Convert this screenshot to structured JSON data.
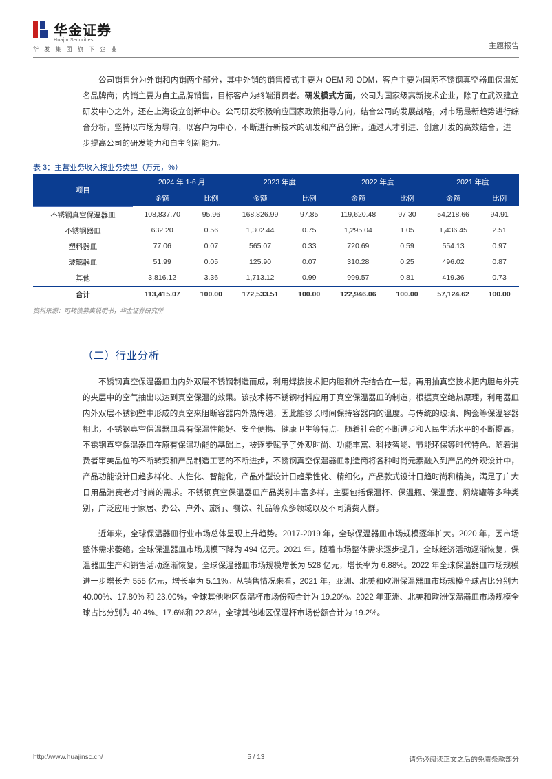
{
  "header": {
    "company_name": "华金证券",
    "company_en": "Huajin Securities",
    "tagline": "华 发 集 团 旗 下 企 业",
    "report_type": "主题报告",
    "logo_colors": {
      "red": "#c8201e",
      "blue": "#1e3a8a"
    }
  },
  "intro_para": {
    "text_before_bold": "公司销售分为外销和内销两个部分，其中外销的销售模式主要为 OEM 和 ODM，客户主要为国际不锈钢真空器皿保温知名品牌商；内销主要为自主品牌销售，目标客户为终端消费者。",
    "bold_text": "研发模式方面，",
    "text_after_bold": "公司为国家级高新技术企业，除了在武汉建立研发中心之外，还在上海设立创新中心。公司研发积极响应国家政策指导方向，结合公司的发展战略，对市场最新趋势进行综合分析，坚持以市场为导向，以客户为中心，不断进行新技术的研发和产品创新，通过人才引进、创意开发的高效结合，进一步提高公司的研发能力和自主创新能力。"
  },
  "table": {
    "caption": "表 3：主营业务收入按业务类型（万元，%）",
    "header_top": {
      "col0": "项目",
      "p1": "2024 年 1-6 月",
      "p2": "2023 年度",
      "p3": "2022 年度",
      "p4": "2021 年度"
    },
    "header_sub": {
      "amt": "金额",
      "pct": "比例"
    },
    "rows": [
      {
        "label": "不锈钢真空保温器皿",
        "v": [
          "108,837.70",
          "95.96",
          "168,826.99",
          "97.85",
          "119,620.48",
          "97.30",
          "54,218.66",
          "94.91"
        ]
      },
      {
        "label": "不锈钢器皿",
        "v": [
          "632.20",
          "0.56",
          "1,302.44",
          "0.75",
          "1,295.04",
          "1.05",
          "1,436.45",
          "2.51"
        ]
      },
      {
        "label": "塑料器皿",
        "v": [
          "77.06",
          "0.07",
          "565.07",
          "0.33",
          "720.69",
          "0.59",
          "554.13",
          "0.97"
        ]
      },
      {
        "label": "玻璃器皿",
        "v": [
          "51.99",
          "0.05",
          "125.90",
          "0.07",
          "310.28",
          "0.25",
          "496.02",
          "0.87"
        ]
      },
      {
        "label": "其他",
        "v": [
          "3,816.12",
          "3.36",
          "1,713.12",
          "0.99",
          "999.57",
          "0.81",
          "419.36",
          "0.73"
        ]
      }
    ],
    "total": {
      "label": "合计",
      "v": [
        "113,415.07",
        "100.00",
        "172,533.51",
        "100.00",
        "122,946.06",
        "100.00",
        "57,124.62",
        "100.00"
      ]
    },
    "source": "资料来源：可转债募集说明书，华金证券研究所",
    "colors": {
      "header_bg": "#0b3d91",
      "header_fg": "#ffffff",
      "caption_color": "#0a3a8a",
      "rule_color": "#0b3d91"
    }
  },
  "section2": {
    "title": "（二）行业分析",
    "para1": "不锈钢真空保温器皿由内外双层不锈钢制造而成，利用焊接技术把内胆和外壳结合在一起，再用抽真空技术把内胆与外壳的夹层中的空气抽出以达到真空保温的效果。该技术将不锈钢材料应用于真空保温器皿的制造，根据真空绝热原理，利用器皿内外双层不锈钢壁中形成的真空来阻断容器内外热传递，因此能够长时间保持容器内的温度。与传统的玻璃、陶瓷等保温容器相比，不锈钢真空保温器皿具有保温性能好、安全便携、健康卫生等特点。随着社会的不断进步和人民生活水平的不断提高，不锈钢真空保温器皿在原有保温功能的基础上，被逐步赋予了外观时尚、功能丰富、科技智能、节能环保等时代特色。随着消费者审美品位的不断转变和产品制造工艺的不断进步，不锈钢真空保温器皿制造商将各种时尚元素融入到产品的外观设计中，产品功能设计日趋多样化、人性化、智能化，产品外型设计日趋柔性化、精细化，产品款式设计日趋时尚和精美，满足了广大日用品消费者对时尚的需求。不锈钢真空保温器皿产品类别丰富多样，主要包括保温杯、保温瓶、保温壶、焖烧罐等多种类别，广泛应用于家居、办公、户外、旅行、餐饮、礼品等众多领域以及不同消费人群。",
    "para2": "近年来，全球保温器皿行业市场总体呈现上升趋势。2017-2019 年，全球保温器皿市场规模逐年扩大。2020 年，因市场整体需求萎缩，全球保温器皿市场规模下降为 494 亿元。2021 年，随着市场整体需求逐步提升，全球经济活动逐渐恢复，保温器皿生产和销售活动逐渐恢复，全球保温器皿市场规模增长为 528 亿元，增长率为 6.88%。2022 年全球保温器皿市场规模进一步增长为 555 亿元，增长率为 5.11%。从销售情况来看，2021 年，亚洲、北美和欧洲保温器皿市场规模全球占比分别为 40.00%、17.80% 和 23.00%，全球其他地区保温杯市场份额合计为 19.20%。2022 年亚洲、北美和欧洲保温器皿市场规模全球占比分别为 40.4%、17.6%和 22.8%，全球其他地区保温杯市场份额合计为 19.2%。"
  },
  "footer": {
    "url": "http://www.huajinsc.cn/",
    "page": "5 / 13",
    "disclaimer": "请务必阅读正文之后的免责条款部分"
  }
}
